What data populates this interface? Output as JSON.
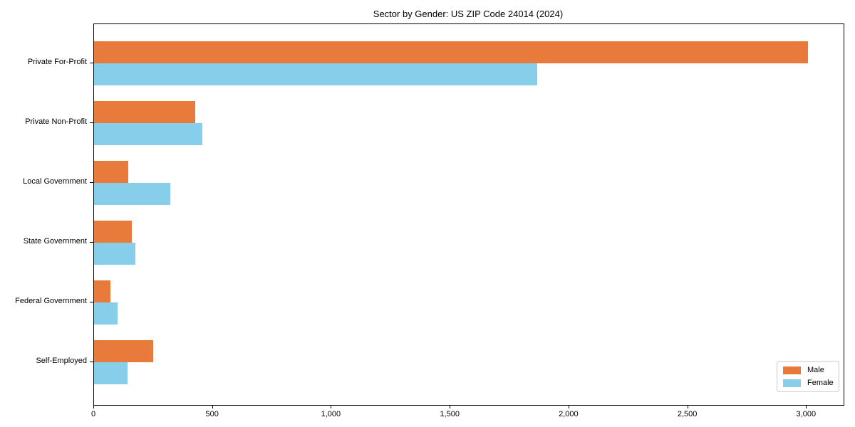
{
  "chart_data": {
    "type": "bar",
    "orientation": "horizontal",
    "title": "Sector by Gender: US ZIP Code 24014 (2024)",
    "categories": [
      "Private For-Profit",
      "Private Non-Profit",
      "Local Government",
      "State Government",
      "Federal Government",
      "Self-Employed"
    ],
    "series": [
      {
        "name": "Male",
        "color": "#e87a3c",
        "values": [
          3005,
          425,
          145,
          160,
          70,
          250
        ]
      },
      {
        "name": "Female",
        "color": "#87ceeb",
        "values": [
          1865,
          455,
          320,
          175,
          100,
          140
        ]
      }
    ],
    "xlabel": "",
    "ylabel": "",
    "xlim": [
      0,
      3155
    ],
    "xticks": [
      0,
      500,
      1000,
      1500,
      2000,
      2500,
      3000
    ],
    "xtick_labels": [
      "0",
      "500",
      "1,000",
      "1,500",
      "2,000",
      "2,500",
      "3,000"
    ],
    "grid": false,
    "legend_position": "lower right"
  }
}
